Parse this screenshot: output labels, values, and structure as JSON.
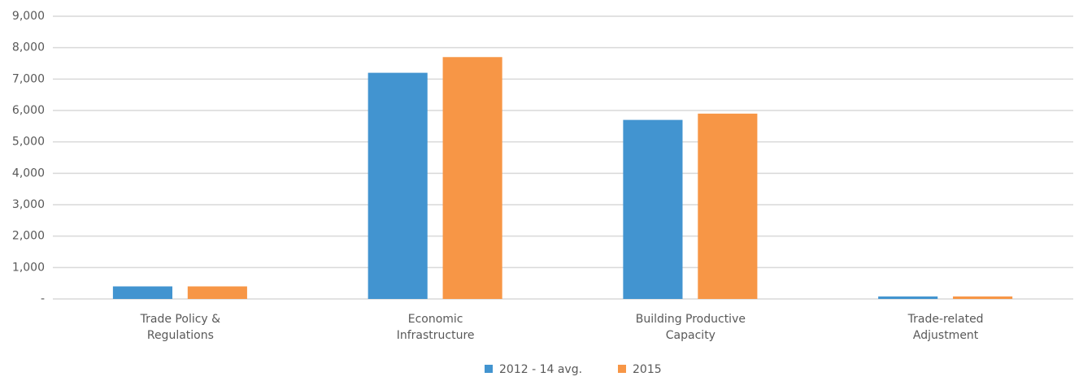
{
  "chart_data": {
    "type": "bar",
    "categories": [
      [
        "Trade Policy &",
        "Regulations"
      ],
      [
        "Economic",
        "Infrastructure"
      ],
      [
        "Building Productive",
        "Capacity"
      ],
      [
        "Trade-related",
        "Adjustment"
      ]
    ],
    "series": [
      {
        "name": "2012 - 14 avg.",
        "color": "#4294d0",
        "values": [
          400,
          7200,
          5700,
          80
        ]
      },
      {
        "name": "2015",
        "color": "#f79646",
        "values": [
          400,
          7700,
          5900,
          80
        ]
      }
    ],
    "ylim": [
      0,
      9000
    ],
    "yticks": [
      {
        "value": 0,
        "label": "-"
      },
      {
        "value": 1000,
        "label": "1,000"
      },
      {
        "value": 2000,
        "label": "2,000"
      },
      {
        "value": 3000,
        "label": "3,000"
      },
      {
        "value": 4000,
        "label": "4,000"
      },
      {
        "value": 5000,
        "label": "5,000"
      },
      {
        "value": 6000,
        "label": "6,000"
      },
      {
        "value": 7000,
        "label": "7,000"
      },
      {
        "value": 8000,
        "label": "8,000"
      },
      {
        "value": 9000,
        "label": "9,000"
      }
    ],
    "grid": true,
    "legend": "bottom"
  }
}
